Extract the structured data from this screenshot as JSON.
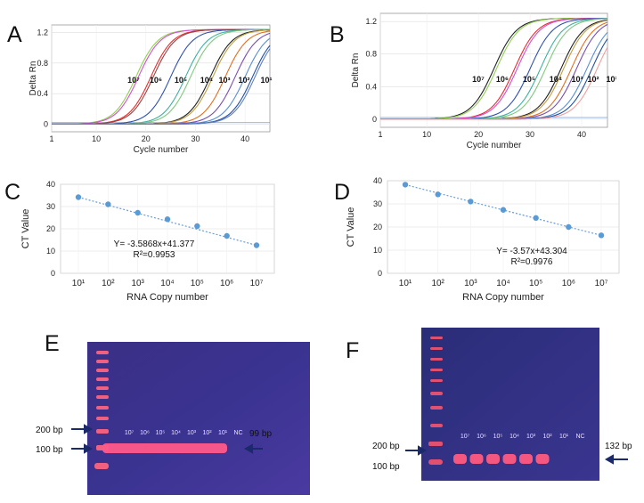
{
  "panels": {
    "A": {
      "letter": "A"
    },
    "B": {
      "letter": "B"
    },
    "C": {
      "letter": "C"
    },
    "D": {
      "letter": "D"
    },
    "E": {
      "letter": "E"
    },
    "F": {
      "letter": "F"
    }
  },
  "amplification": {
    "ylabel": "Delta Rn",
    "xlabel": "Cycle number",
    "yticks": [
      "0",
      "0.4",
      "0.8",
      "1.2"
    ],
    "xticks": [
      "1",
      "10",
      "20",
      "30",
      "40"
    ],
    "dilution_labels": [
      "10⁷",
      "10⁶",
      "10⁵",
      "10⁴",
      "10³",
      "10²",
      "10¹"
    ]
  },
  "standard_curves": {
    "ylabel": "CT Value",
    "xlabel": "RNA Copy number",
    "xticks": [
      "10¹",
      "10²",
      "10³",
      "10⁴",
      "10⁵",
      "10⁶",
      "10⁷"
    ],
    "yticks": [
      "0",
      "10",
      "20",
      "30",
      "40"
    ]
  },
  "gels": {
    "E": {
      "marker_200": "200 bp",
      "marker_100": "100 bp",
      "product": "99 bp",
      "lanes": [
        "10⁷",
        "10⁶",
        "10⁵",
        "10⁴",
        "10³",
        "10²",
        "10¹",
        "NC"
      ]
    },
    "F": {
      "marker_200": "200 bp",
      "marker_100": "100 bp",
      "product": "132 bp",
      "lanes": [
        "10⁷",
        "10⁶",
        "10⁵",
        "10⁴",
        "10³",
        "10²",
        "10¹",
        "NC"
      ]
    }
  },
  "chart_data": [
    {
      "panel": "A",
      "type": "line",
      "xlabel": "Cycle number",
      "ylabel": "Delta Rn",
      "xlim": [
        1,
        45
      ],
      "ylim": [
        -0.1,
        1.3
      ],
      "series_midpoints": [
        18,
        18.5,
        21,
        21.5,
        25,
        28,
        29,
        33,
        33.5,
        36,
        38,
        40,
        41.5,
        42
      ],
      "series_colors": [
        "#8fd14f",
        "#d44fd4",
        "#e03030",
        "#a04040",
        "#3050b0",
        "#40b0a0",
        "#7fc97f",
        "#202020",
        "#c0a040",
        "#e07020",
        "#7a4fb0",
        "#5a8fd0",
        "#2050a0",
        "#6080c0"
      ],
      "dilution_labels": [
        "10⁷",
        "10⁶",
        "10⁵",
        "10⁴",
        "10³",
        "10²",
        "10¹"
      ]
    },
    {
      "panel": "B",
      "type": "line",
      "xlabel": "Cycle number",
      "ylabel": "Delta Rn",
      "xlim": [
        1,
        45
      ],
      "ylim": [
        -0.1,
        1.3
      ],
      "series_midpoints": [
        23,
        23.5,
        27,
        27.5,
        30,
        32,
        33,
        36,
        36.5,
        38,
        39,
        41,
        42,
        43
      ],
      "series_colors": [
        "#202020",
        "#8fd14f",
        "#e03030",
        "#d44fd4",
        "#3050b0",
        "#40b0a0",
        "#7fc97f",
        "#202020",
        "#c0a040",
        "#e07020",
        "#7a4fb0",
        "#5a8fd0",
        "#2050a0",
        "#f0a0a0"
      ],
      "dilution_labels": [
        "10⁷",
        "10⁶",
        "10⁵",
        "10⁴",
        "10³",
        "10²",
        "10¹"
      ]
    },
    {
      "panel": "C",
      "type": "scatter",
      "xlabel": "RNA Copy number",
      "ylabel": "CT Value",
      "categories": [
        "10¹",
        "10²",
        "10³",
        "10⁴",
        "10⁵",
        "10⁶",
        "10⁷"
      ],
      "values": [
        34.2,
        31.0,
        27.2,
        24.3,
        21.2,
        16.8,
        12.6
      ],
      "ylim": [
        0,
        40
      ],
      "equation": "Y= -3.5868x+41.377",
      "r2": "R²=0.9953"
    },
    {
      "panel": "D",
      "type": "scatter",
      "xlabel": "RNA Copy number",
      "ylabel": "CT Value",
      "categories": [
        "10¹",
        "10²",
        "10³",
        "10⁴",
        "10⁵",
        "10⁶",
        "10⁷"
      ],
      "values": [
        38.3,
        34.1,
        31.0,
        27.4,
        23.9,
        20.0,
        16.4
      ],
      "ylim": [
        0,
        40
      ],
      "equation": "Y= -3.57x+43.304",
      "r2": "R²=0.9976"
    }
  ]
}
